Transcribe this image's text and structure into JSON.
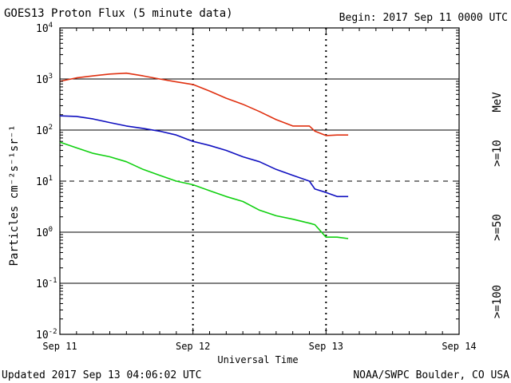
{
  "header": {
    "title": "GOES13 Proton Flux (5 minute data)",
    "begin": "Begin: 2017 Sep 11 0000 UTC"
  },
  "footer": {
    "updated": "Updated 2017 Sep 13 04:06:02 UTC",
    "credit": "NOAA/SWPC Boulder, CO USA"
  },
  "chart_data": {
    "type": "line",
    "title": "GOES13 Proton Flux (5 minute data)",
    "xlabel": "Universal Time",
    "ylabel": "Particles cm⁻²s⁻¹sr⁻¹",
    "unit": "MeV",
    "y_scale": "log",
    "ylim": [
      0.01,
      10000
    ],
    "xlim": [
      "2017-09-11 00:00",
      "2017-09-14 00:00"
    ],
    "x_tick_labels": [
      "Sep 11",
      "Sep 12",
      "Sep 13",
      "Sep 14"
    ],
    "y_tick_labels": [
      {
        "base": "10",
        "exp": "4",
        "value": 10000
      },
      {
        "base": "10",
        "exp": "3",
        "value": 1000
      },
      {
        "base": "10",
        "exp": "2",
        "value": 100
      },
      {
        "base": "10",
        "exp": "1",
        "value": 10
      },
      {
        "base": "10",
        "exp": "0",
        "value": 1
      },
      {
        "base": "10",
        "exp": "-1",
        "value": 0.1
      },
      {
        "base": "10",
        "exp": "-2",
        "value": 0.01
      }
    ],
    "thresholds": [
      {
        "value": 1000,
        "style": "solid"
      },
      {
        "value": 100,
        "style": "solid"
      },
      {
        "value": 10,
        "style": "dashed"
      },
      {
        "value": 1,
        "style": "solid"
      },
      {
        "value": 0.1,
        "style": "solid"
      }
    ],
    "series": [
      {
        "name": ">=10",
        "color": "#e03010",
        "x": [
          "2017-09-11 00:00",
          "2017-09-11 03:00",
          "2017-09-11 06:00",
          "2017-09-11 09:00",
          "2017-09-11 12:00",
          "2017-09-11 15:00",
          "2017-09-11 18:00",
          "2017-09-11 21:00",
          "2017-09-12 00:00",
          "2017-09-12 03:00",
          "2017-09-12 06:00",
          "2017-09-12 09:00",
          "2017-09-12 12:00",
          "2017-09-12 15:00",
          "2017-09-12 18:00",
          "2017-09-12 21:00",
          "2017-09-12 22:00",
          "2017-09-13 00:00",
          "2017-09-13 02:00",
          "2017-09-13 04:00"
        ],
        "values": [
          900,
          1050,
          1150,
          1250,
          1300,
          1150,
          1000,
          880,
          780,
          580,
          420,
          320,
          230,
          160,
          120,
          120,
          95,
          78,
          80,
          80
        ]
      },
      {
        "name": ">=50",
        "color": "#1010c0",
        "x": [
          "2017-09-11 00:00",
          "2017-09-11 03:00",
          "2017-09-11 06:00",
          "2017-09-11 09:00",
          "2017-09-11 12:00",
          "2017-09-11 15:00",
          "2017-09-11 18:00",
          "2017-09-11 21:00",
          "2017-09-12 00:00",
          "2017-09-12 03:00",
          "2017-09-12 06:00",
          "2017-09-12 09:00",
          "2017-09-12 12:00",
          "2017-09-12 15:00",
          "2017-09-12 18:00",
          "2017-09-12 21:00",
          "2017-09-12 22:00",
          "2017-09-13 00:00",
          "2017-09-13 02:00",
          "2017-09-13 04:00"
        ],
        "values": [
          190,
          185,
          165,
          140,
          120,
          108,
          95,
          80,
          60,
          50,
          40,
          30,
          24,
          17,
          13,
          10,
          7,
          6,
          5,
          5
        ]
      },
      {
        "name": ">=100",
        "color": "#10d010",
        "x": [
          "2017-09-11 00:00",
          "2017-09-11 03:00",
          "2017-09-11 06:00",
          "2017-09-11 09:00",
          "2017-09-11 12:00",
          "2017-09-11 15:00",
          "2017-09-11 18:00",
          "2017-09-11 21:00",
          "2017-09-12 00:00",
          "2017-09-12 03:00",
          "2017-09-12 06:00",
          "2017-09-12 09:00",
          "2017-09-12 12:00",
          "2017-09-12 15:00",
          "2017-09-12 18:00",
          "2017-09-12 21:00",
          "2017-09-12 22:00",
          "2017-09-13 00:00",
          "2017-09-13 02:00",
          "2017-09-13 04:00"
        ],
        "values": [
          58,
          45,
          35,
          30,
          24,
          17,
          13,
          10,
          8.5,
          6.5,
          5,
          4,
          2.7,
          2.1,
          1.8,
          1.5,
          1.4,
          0.8,
          0.8,
          0.75
        ]
      }
    ]
  }
}
